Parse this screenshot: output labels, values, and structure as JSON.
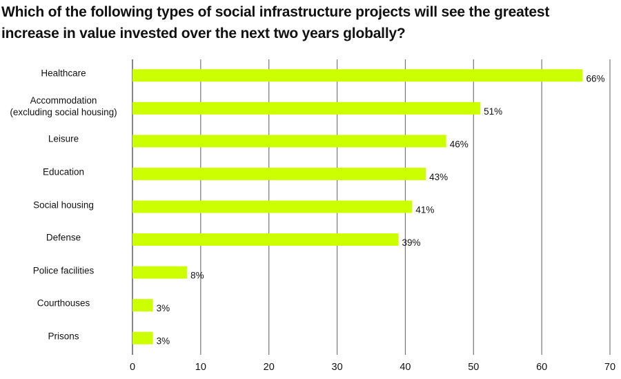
{
  "chart_data": {
    "type": "bar",
    "orientation": "horizontal",
    "title": "Which of the following types of social infrastructure projects will see the greatest\nincrease in value invested over the next two years globally?",
    "categories": [
      "Healthcare",
      "Accommodation\n(excluding social housing)",
      "Leisure",
      "Education",
      "Social housing",
      "Defense",
      "Police facilities",
      "Courthouses",
      "Prisons"
    ],
    "values": [
      66,
      51,
      46,
      43,
      41,
      39,
      8,
      3,
      3
    ],
    "value_labels": [
      "66%",
      "51%",
      "46%",
      "43%",
      "41%",
      "39%",
      "8%",
      "3%",
      "3%"
    ],
    "color": "#ccff00",
    "xlim": [
      0,
      70
    ],
    "xticks": [
      0,
      10,
      20,
      30,
      40,
      50,
      60,
      70
    ],
    "grid": true
  }
}
